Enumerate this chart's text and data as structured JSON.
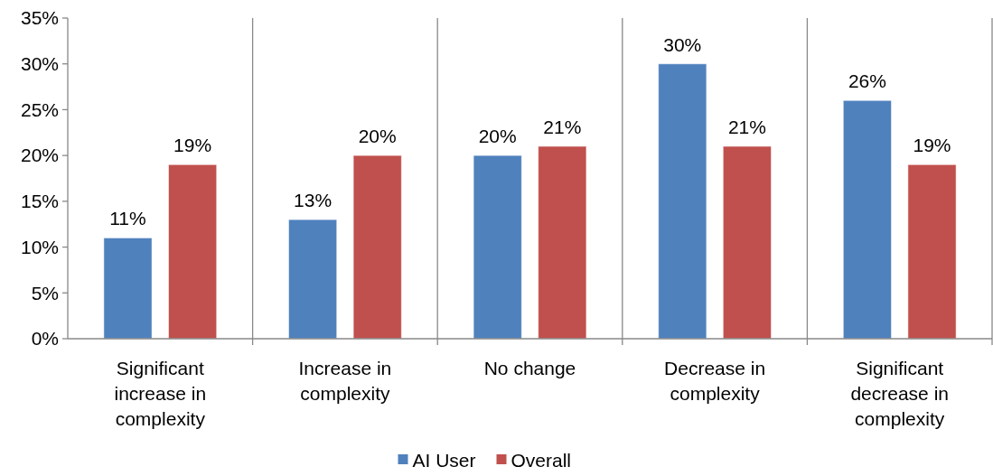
{
  "chart_data": {
    "type": "bar",
    "categories": [
      "Significant increase in complexity",
      "Increase in complexity",
      "No change",
      "Decrease in complexity",
      "Significant decrease in complexity"
    ],
    "series": [
      {
        "name": "AI User",
        "color": "#4f81bd",
        "values": [
          11,
          13,
          20,
          30,
          26
        ],
        "value_labels": [
          "11%",
          "13%",
          "20%",
          "30%",
          "26%"
        ]
      },
      {
        "name": "Overall",
        "color": "#c0504d",
        "values": [
          19,
          20,
          21,
          21,
          19
        ],
        "value_labels": [
          "19%",
          "20%",
          "21%",
          "21%",
          "19%"
        ]
      }
    ],
    "ylim": [
      0,
      35
    ],
    "yticks": [
      {
        "value": 0,
        "label": "0%"
      },
      {
        "value": 5,
        "label": "5%"
      },
      {
        "value": 10,
        "label": "10%"
      },
      {
        "value": 15,
        "label": "15%"
      },
      {
        "value": 20,
        "label": "20%"
      },
      {
        "value": 25,
        "label": "25%"
      },
      {
        "value": 30,
        "label": "30%"
      },
      {
        "value": 35,
        "label": "35%"
      }
    ],
    "grid": "x",
    "legend": "bottom"
  }
}
